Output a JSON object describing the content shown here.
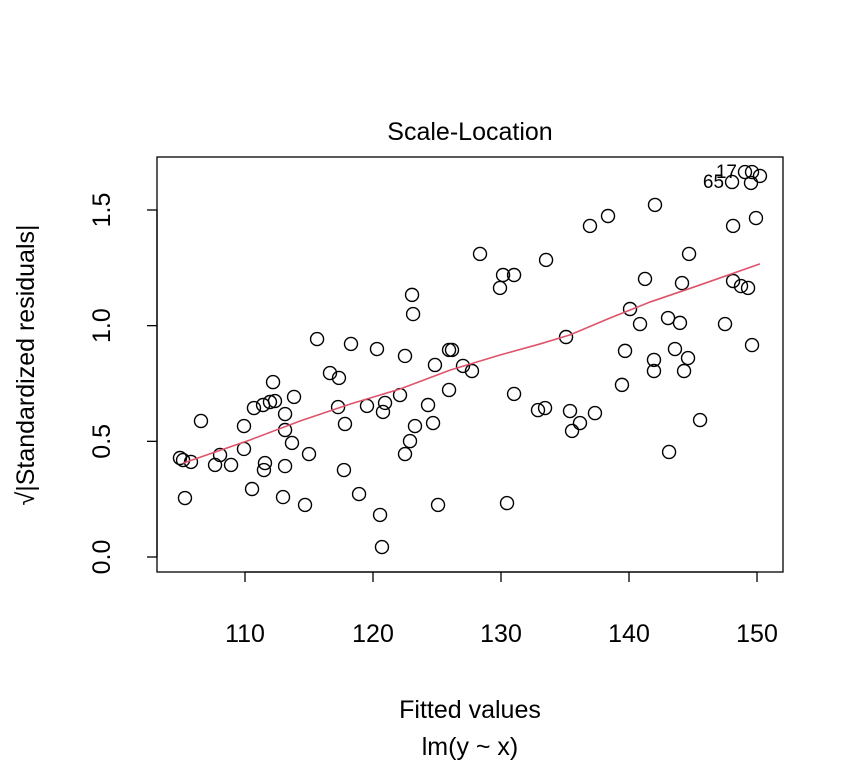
{
  "chart_data": {
    "type": "scatter",
    "title": "Scale-Location",
    "x_label": "Fitted values",
    "subtitle": "lm(y ~ x)",
    "y_label": "√|Standardized residuals|",
    "xlim": [
      103.125,
      152.03
    ],
    "ylim": [
      -0.0648,
      1.729
    ],
    "xticks": [
      110,
      120,
      130,
      140,
      150
    ],
    "yticks": [
      {
        "value": 0,
        "label": "0.0"
      },
      0.5,
      {
        "value": 1,
        "label": "1.0"
      },
      1.5
    ],
    "series": [
      {
        "name": "residuals",
        "color": "#000000",
        "x": [
          104.92,
          105.16,
          105.78,
          105.31,
          106.56,
          107.66,
          108.05,
          108.91,
          109.92,
          109.92,
          110.55,
          110.7,
          111.41,
          111.48,
          111.56,
          111.95,
          112.19,
          112.34,
          113.13,
          113.13,
          113.13,
          112.97,
          113.67,
          113.83,
          114.69,
          115.0,
          115.63,
          116.64,
          117.27,
          117.34,
          117.81,
          117.73,
          118.28,
          118.91,
          119.53,
          120.31,
          120.55,
          120.7,
          120.78,
          120.94,
          122.11,
          122.5,
          122.5,
          122.89,
          123.05,
          123.13,
          123.28,
          124.3,
          124.69,
          124.84,
          125.08,
          125.94,
          126.17,
          125.94,
          127.03,
          127.73,
          128.36,
          129.92,
          130.16,
          131.02,
          130.47,
          131.02,
          132.89,
          133.44,
          133.52,
          135.08,
          135.39,
          135.55,
          136.17,
          136.95,
          137.34,
          138.36,
          139.45,
          139.69,
          140.08,
          140.86,
          141.25,
          142.03,
          141.95,
          141.95,
          143.13,
          143.05,
          143.59,
          143.98,
          144.14,
          144.3,
          144.61,
          144.69,
          145.55,
          147.5,
          148.05,
          148.13,
          148.13,
          148.75,
          149.06,
          149.3,
          149.53,
          149.61,
          149.92,
          149.61,
          150.23
        ],
        "values": [
          0.428,
          0.419,
          0.411,
          0.255,
          0.588,
          0.398,
          0.441,
          0.398,
          0.566,
          0.467,
          0.294,
          0.644,
          0.657,
          0.376,
          0.406,
          0.67,
          0.756,
          0.674,
          0.618,
          0.549,
          0.393,
          0.259,
          0.493,
          0.692,
          0.225,
          0.445,
          0.942,
          0.795,
          0.648,
          0.774,
          0.575,
          0.376,
          0.921,
          0.272,
          0.653,
          0.899,
          0.182,
          0.043,
          0.627,
          0.666,
          0.7,
          0.445,
          0.869,
          0.501,
          1.133,
          1.05,
          0.566,
          0.657,
          0.579,
          0.83,
          0.225,
          0.895,
          0.895,
          0.722,
          0.826,
          0.804,
          1.31,
          1.163,
          1.219,
          1.219,
          0.233,
          0.705,
          0.635,
          0.644,
          1.284,
          0.951,
          0.631,
          0.545,
          0.579,
          1.431,
          0.622,
          1.474,
          0.744,
          0.891,
          1.072,
          1.007,
          1.202,
          1.522,
          0.852,
          0.804,
          0.454,
          1.033,
          0.899,
          1.012,
          1.184,
          0.804,
          0.86,
          1.31,
          0.592,
          1.007,
          1.621,
          1.431,
          1.193,
          1.171,
          1.664,
          1.163,
          1.617,
          1.664,
          1.465,
          0.916,
          1.647
        ]
      },
      {
        "name": "smoother",
        "color": "#DF536B",
        "x": [
          105.16,
          110.39,
          114.3,
          118.2,
          122.11,
          126.02,
          129.92,
          133.05,
          135.39,
          138.52,
          141.64,
          145.55,
          150.23
        ],
        "values": [
          0.406,
          0.506,
          0.588,
          0.661,
          0.726,
          0.808,
          0.873,
          0.921,
          0.96,
          1.033,
          1.102,
          1.176,
          1.267
        ]
      }
    ],
    "annotations": [
      {
        "text": "65",
        "x": 148.05,
        "y": 1.621
      },
      {
        "text": "17",
        "x": 149.06,
        "y": 1.664
      }
    ]
  }
}
